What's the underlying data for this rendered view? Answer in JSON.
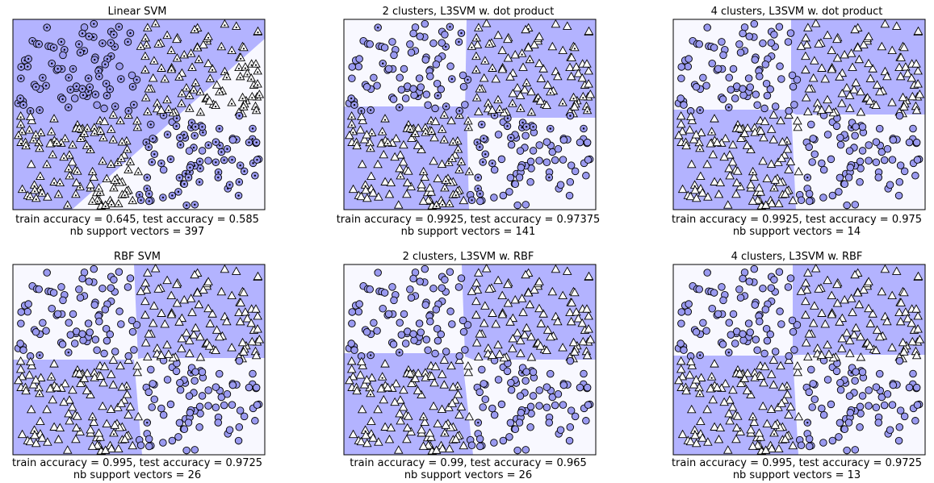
{
  "figure": {
    "colors": {
      "region_positive": "#b3b3ff",
      "region_negative": "#f8f8ff",
      "point_fill": "#9a9af0",
      "triangle_fill": "#ffffff",
      "edge": "#000000"
    },
    "marker_legend": {
      "triangle-icon": "class A points (triangles)",
      "circle-icon": "class B points (filled circles)",
      "dotted-marker-icon": "support vectors (marker with center dot)"
    }
  },
  "chart_data": [
    {
      "type": "scatter",
      "title": "Linear SVM",
      "train_accuracy": "0.645",
      "test_accuracy": "0.585",
      "nb_support_vectors": "397",
      "caption_line1": "train accuracy = 0.645, test accuracy = 0.585",
      "caption_line2": "nb support vectors = 397",
      "xlim": [
        0,
        1
      ],
      "ylim": [
        0,
        1
      ],
      "decision_boundary": "diagonal line from (0.24, 0.0) to (1.0, 0.89); positive region above-left",
      "support_vectors_marked": "most points"
    },
    {
      "type": "scatter",
      "title": "2 clusters, L3SVM w. dot product",
      "train_accuracy": "0.9925",
      "test_accuracy": "0.97375",
      "nb_support_vectors": "141",
      "caption_line1": "train accuracy = 0.9925, test accuracy = 0.97375",
      "caption_line2": "nb support vectors = 141",
      "xlim": [
        0,
        1
      ],
      "ylim": [
        0,
        1
      ],
      "decision_boundary": "checkerboard; vertical split x≈0.49, horizontal split y≈0.49",
      "support_vectors_marked": "some points"
    },
    {
      "type": "scatter",
      "title": "4 clusters, L3SVM w. dot product",
      "train_accuracy": "0.9925",
      "test_accuracy": "0.975",
      "nb_support_vectors": "14",
      "caption_line1": "train accuracy = 0.9925, test accuracy = 0.975",
      "caption_line2": "nb support vectors = 14",
      "xlim": [
        0,
        1
      ],
      "ylim": [
        0,
        1
      ],
      "decision_boundary": "checkerboard; vertical split x≈0.48, horizontal split y≈0.49",
      "support_vectors_marked": "few points"
    },
    {
      "type": "scatter",
      "title": "RBF SVM",
      "train_accuracy": "0.995",
      "test_accuracy": "0.9725",
      "nb_support_vectors": "26",
      "caption_line1": "train accuracy = 0.995, test accuracy = 0.9725",
      "caption_line2": "nb support vectors = 26",
      "xlim": [
        0,
        1
      ],
      "ylim": [
        0,
        1
      ],
      "decision_boundary": "checkerboard; vertical split x≈0.48, horizontal split y≈0.51",
      "support_vectors_marked": "few points"
    },
    {
      "type": "scatter",
      "title": "2 clusters, L3SVM w. RBF",
      "train_accuracy": "0.99",
      "test_accuracy": "0.965",
      "nb_support_vectors": "26",
      "caption_line1": "train accuracy = 0.99, test accuracy = 0.965",
      "caption_line2": "nb support vectors = 26",
      "xlim": [
        0,
        1
      ],
      "ylim": [
        0,
        1
      ],
      "decision_boundary": "checkerboard; vertical split x≈0.49, horizontal split y≈0.51",
      "support_vectors_marked": "few points"
    },
    {
      "type": "scatter",
      "title": "4 clusters, L3SVM w. RBF",
      "train_accuracy": "0.995",
      "test_accuracy": "0.9725",
      "nb_support_vectors": "13",
      "caption_line1": "train accuracy = 0.995, test accuracy = 0.9725",
      "caption_line2": "nb support vectors = 13",
      "xlim": [
        0,
        1
      ],
      "ylim": [
        0,
        1
      ],
      "decision_boundary": "checkerboard; vertical split x≈0.48, horizontal split y≈0.51",
      "support_vectors_marked": "few points"
    }
  ]
}
